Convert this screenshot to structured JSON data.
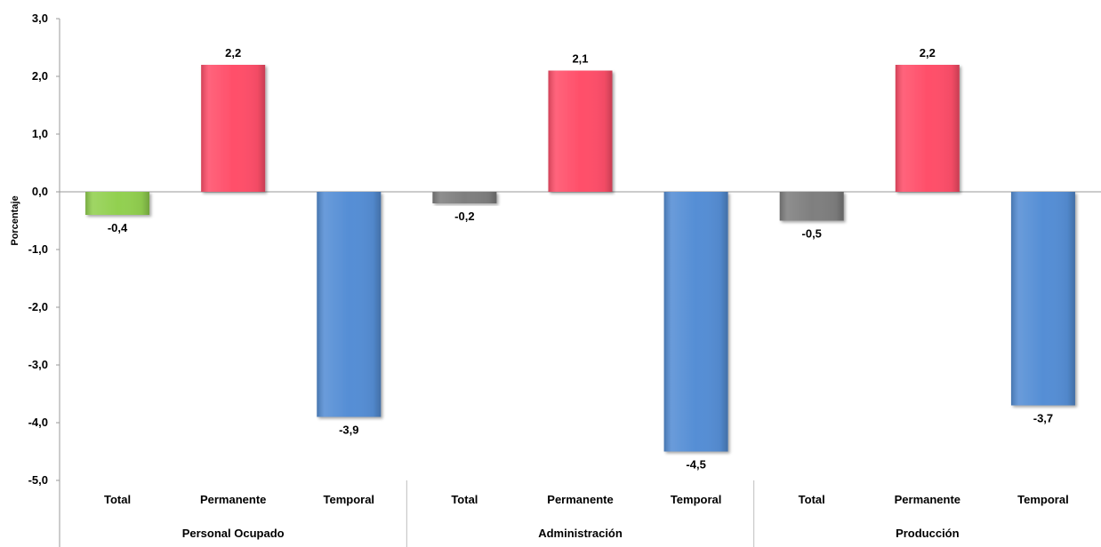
{
  "chart_data": {
    "type": "bar",
    "ylabel": "Porcentaje",
    "ylim": [
      -5,
      3
    ],
    "yticks": [
      3,
      2,
      1,
      0,
      -1,
      -2,
      -3,
      -4,
      -5
    ],
    "ytick_labels": [
      "3,0",
      "2,0",
      "1,0",
      "0,0",
      "-1,0",
      "-2,0",
      "-3,0",
      "-4,0",
      "-5,0"
    ],
    "groups": [
      {
        "name": "Personal Ocupado",
        "categories": [
          "Total",
          "Permanente",
          "Temporal"
        ],
        "values": [
          -0.4,
          2.2,
          -3.9
        ],
        "labels": [
          "-0,4",
          "2,2",
          "-3,9"
        ],
        "colors": [
          "#92d050",
          "#ff4f6a",
          "#558ed5"
        ]
      },
      {
        "name": "Administración",
        "categories": [
          "Total",
          "Permanente",
          "Temporal"
        ],
        "values": [
          -0.2,
          2.1,
          -4.5
        ],
        "labels": [
          "-0,2",
          "2,1",
          "-4,5"
        ],
        "colors": [
          "#7f7f7f",
          "#ff4f6a",
          "#558ed5"
        ]
      },
      {
        "name": "Producción",
        "categories": [
          "Total",
          "Permanente",
          "Temporal"
        ],
        "values": [
          -0.5,
          2.2,
          -3.7
        ],
        "labels": [
          "-0,5",
          "2,2",
          "-3,7"
        ],
        "colors": [
          "#7f7f7f",
          "#ff4f6a",
          "#558ed5"
        ]
      }
    ],
    "grid": false,
    "legend": "none"
  }
}
